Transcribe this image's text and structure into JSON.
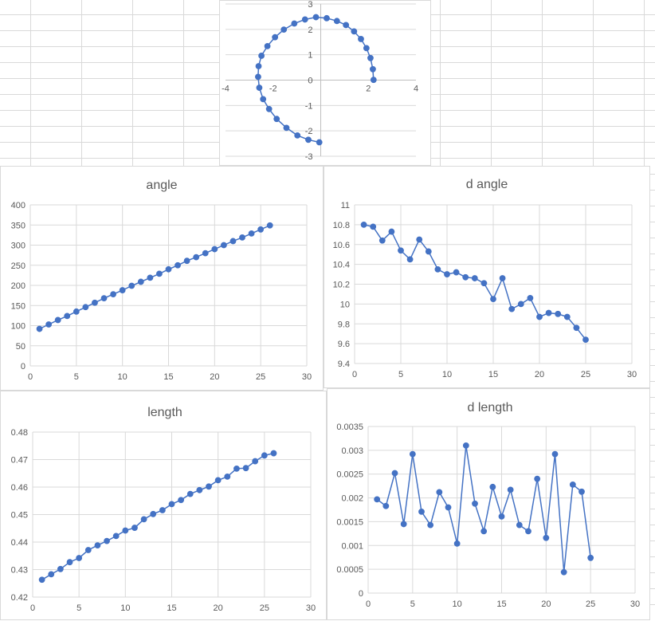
{
  "sheet": {
    "gridline_color": "#d9d9d9",
    "series_color": "#4472c4"
  },
  "chart_data": [
    {
      "id": "xy-path",
      "type": "scatter",
      "title": "",
      "xlabel": "",
      "ylabel": "",
      "xlim": [
        -4,
        4
      ],
      "ylim": [
        -3,
        3
      ],
      "x_ticks": [
        -4,
        -2,
        0,
        2,
        4
      ],
      "y_ticks": [
        -3,
        -2,
        -1,
        0,
        1,
        2,
        3
      ],
      "grid": "horizontal",
      "axes_cross_at_origin": true,
      "series": [
        {
          "x": [
            2.22,
            2.19,
            2.09,
            1.92,
            1.69,
            1.4,
            1.06,
            0.68,
            0.25,
            -0.2,
            -0.66,
            -1.11,
            -1.55,
            -1.92,
            -2.24,
            -2.49,
            -2.61,
            -2.63,
            -2.58,
            -2.42,
            -2.17,
            -1.85,
            -1.44,
            -0.98,
            -0.52,
            -0.06
          ],
          "y": [
            0.01,
            0.43,
            0.87,
            1.26,
            1.62,
            1.92,
            2.17,
            2.33,
            2.44,
            2.48,
            2.39,
            2.23,
            1.99,
            1.69,
            1.34,
            0.96,
            0.55,
            0.13,
            -0.3,
            -0.75,
            -1.14,
            -1.53,
            -1.88,
            -2.18,
            -2.35,
            -2.45
          ]
        }
      ]
    },
    {
      "id": "angle",
      "type": "line",
      "title": "angle",
      "xlabel": "",
      "ylabel": "",
      "xlim": [
        0,
        30
      ],
      "ylim": [
        0,
        400
      ],
      "x_ticks": [
        0,
        5,
        10,
        15,
        20,
        25,
        30
      ],
      "y_ticks": [
        0,
        50,
        100,
        150,
        200,
        250,
        300,
        350,
        400
      ],
      "grid": "both",
      "series": [
        {
          "x": [
            1,
            2,
            3,
            4,
            5,
            6,
            7,
            8,
            9,
            10,
            11,
            12,
            13,
            14,
            15,
            16,
            17,
            18,
            19,
            20,
            21,
            22,
            23,
            24,
            25,
            26
          ],
          "y": [
            92,
            103,
            114,
            124,
            135,
            146,
            157,
            168,
            178,
            188,
            199,
            209,
            219,
            229,
            240,
            250,
            261,
            270,
            280,
            290,
            300,
            310,
            319,
            329,
            339,
            349
          ]
        }
      ]
    },
    {
      "id": "d-angle",
      "type": "line",
      "title": "d angle",
      "xlabel": "",
      "ylabel": "",
      "xlim": [
        0,
        30
      ],
      "ylim": [
        9.4,
        11
      ],
      "x_ticks": [
        0,
        5,
        10,
        15,
        20,
        25,
        30
      ],
      "y_ticks": [
        "9.4",
        "9.6",
        "9.8",
        "10",
        "10.2",
        "10.4",
        "10.6",
        "10.8",
        "11"
      ],
      "grid": "both",
      "series": [
        {
          "x": [
            1,
            2,
            3,
            4,
            5,
            6,
            7,
            8,
            9,
            10,
            11,
            12,
            13,
            14,
            15,
            16,
            17,
            18,
            19,
            20,
            21,
            22,
            23,
            24,
            25
          ],
          "y": [
            10.8,
            10.78,
            10.64,
            10.73,
            10.54,
            10.45,
            10.65,
            10.53,
            10.35,
            10.3,
            10.32,
            10.27,
            10.26,
            10.21,
            10.05,
            10.26,
            9.95,
            10.0,
            10.06,
            9.87,
            9.91,
            9.9,
            9.87,
            9.76,
            9.64
          ]
        }
      ]
    },
    {
      "id": "length",
      "type": "line",
      "title": "length",
      "xlabel": "",
      "ylabel": "",
      "xlim": [
        0,
        30
      ],
      "ylim": [
        0.42,
        0.48
      ],
      "x_ticks": [
        0,
        5,
        10,
        15,
        20,
        25,
        30
      ],
      "y_ticks": [
        "0.42",
        "0.43",
        "0.44",
        "0.45",
        "0.46",
        "0.47",
        "0.48"
      ],
      "grid": "both",
      "series": [
        {
          "x": [
            1,
            2,
            3,
            4,
            5,
            6,
            7,
            8,
            9,
            10,
            11,
            12,
            13,
            14,
            15,
            16,
            17,
            18,
            19,
            20,
            21,
            22,
            23,
            24,
            25,
            26
          ],
          "y": [
            0.4263,
            0.4283,
            0.4302,
            0.4327,
            0.4342,
            0.4371,
            0.4388,
            0.4404,
            0.4422,
            0.4442,
            0.4452,
            0.4483,
            0.4502,
            0.4516,
            0.4538,
            0.4553,
            0.4575,
            0.4589,
            0.4602,
            0.4625,
            0.4638,
            0.4667,
            0.4669,
            0.4694,
            0.4715,
            0.4723
          ]
        }
      ]
    },
    {
      "id": "d-length",
      "type": "line",
      "title": "d length",
      "xlabel": "",
      "ylabel": "",
      "xlim": [
        0,
        30
      ],
      "ylim": [
        0,
        0.0035
      ],
      "x_ticks": [
        0,
        5,
        10,
        15,
        20,
        25,
        30
      ],
      "y_ticks": [
        "0",
        "0.0005",
        "0.001",
        "0.0015",
        "0.002",
        "0.0025",
        "0.003",
        "0.0035"
      ],
      "grid": "both",
      "series": [
        {
          "x": [
            1,
            2,
            3,
            4,
            5,
            6,
            7,
            8,
            9,
            10,
            11,
            12,
            13,
            14,
            15,
            16,
            17,
            18,
            19,
            20,
            21,
            22,
            23,
            24,
            25
          ],
          "y": [
            0.00197,
            0.00183,
            0.00252,
            0.00145,
            0.00292,
            0.00171,
            0.00143,
            0.00212,
            0.0018,
            0.00104,
            0.0031,
            0.00188,
            0.0013,
            0.00223,
            0.00161,
            0.00217,
            0.00143,
            0.0013,
            0.0024,
            0.00116,
            0.00292,
            0.00044,
            0.00228,
            0.00213,
            0.00074
          ]
        }
      ]
    }
  ]
}
